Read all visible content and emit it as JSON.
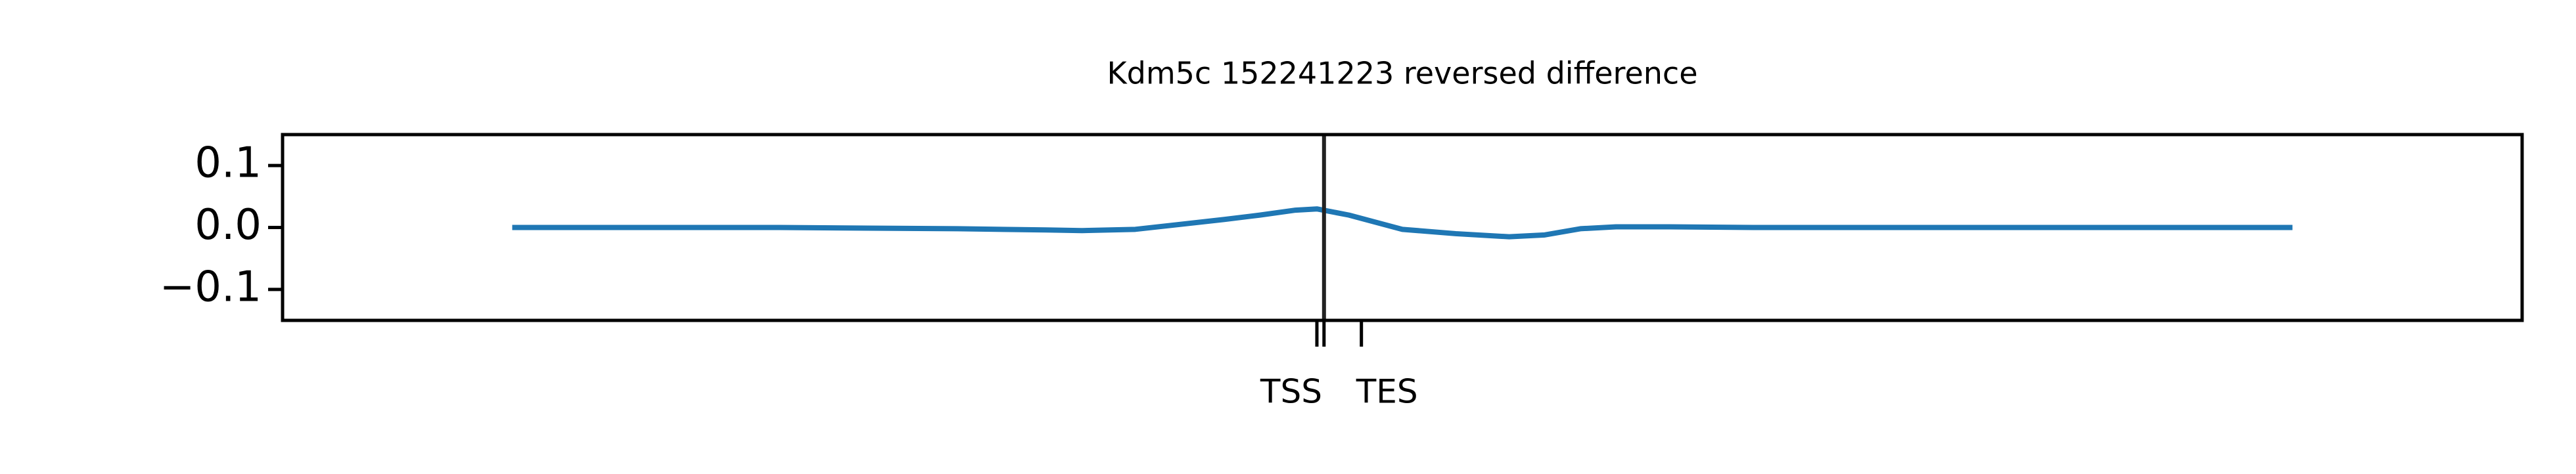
{
  "chart_data": {
    "type": "line",
    "title": "Kdm5c 152241223 reversed difference",
    "x": [
      0,
      50,
      100,
      150,
      200,
      250,
      300,
      320,
      350,
      400,
      420,
      440,
      452,
      470,
      500,
      530,
      560,
      580,
      600,
      620,
      650,
      700,
      750,
      800,
      850,
      900,
      950,
      1000
    ],
    "series": [
      {
        "color": "#1f77b4",
        "values": [
          0,
          0,
          0,
          0,
          -0.001,
          -0.002,
          -0.004,
          -0.005,
          -0.003,
          0.013,
          0.02,
          0.028,
          0.03,
          0.02,
          -0.003,
          -0.01,
          -0.015,
          -0.012,
          -0.002,
          0.001,
          0.001,
          0,
          0,
          0,
          0,
          0,
          0,
          0
        ]
      }
    ],
    "xlim": [
      -129,
      1129
    ],
    "ylim": [
      -0.15,
      0.15
    ],
    "yticks": [
      {
        "value": -0.1,
        "label": "−0.1"
      },
      {
        "value": 0,
        "label": "0.0"
      },
      0.1
    ],
    "xticks": [
      {
        "value": 452,
        "label": "TSS"
      },
      {
        "value": 477,
        "label": "TES"
      }
    ],
    "minor_xticks": [
      456
    ],
    "vline": {
      "x": 456,
      "color": "#222222"
    },
    "grid": false
  }
}
